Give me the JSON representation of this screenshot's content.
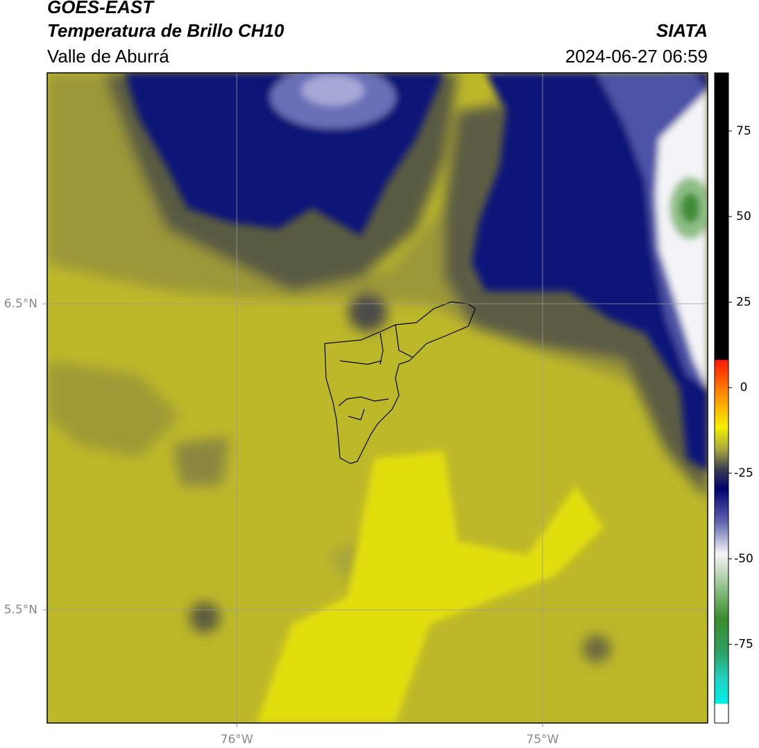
{
  "header": {
    "line1": "GOES-EAST",
    "line2": "Temperatura de Brillo CH10",
    "region": "Valle de Aburrá",
    "source": "SIATA",
    "datetime": "2024-06-27 06:59"
  },
  "map": {
    "lonlim": [
      -76.62,
      -74.46
    ],
    "latlim": [
      5.13,
      7.255
    ],
    "lon_ticks": [
      {
        "value": -76,
        "label": "76°W"
      },
      {
        "value": -75,
        "label": "75°W"
      }
    ],
    "lat_ticks": [
      {
        "value": 6.5,
        "label": "6.5°N"
      },
      {
        "value": 5.5,
        "label": "5.5°N"
      }
    ]
  },
  "colorbar": {
    "lim": [
      -98,
      92
    ],
    "ticks": [
      75,
      50,
      25,
      0,
      -25,
      -50,
      -75
    ]
  }
}
